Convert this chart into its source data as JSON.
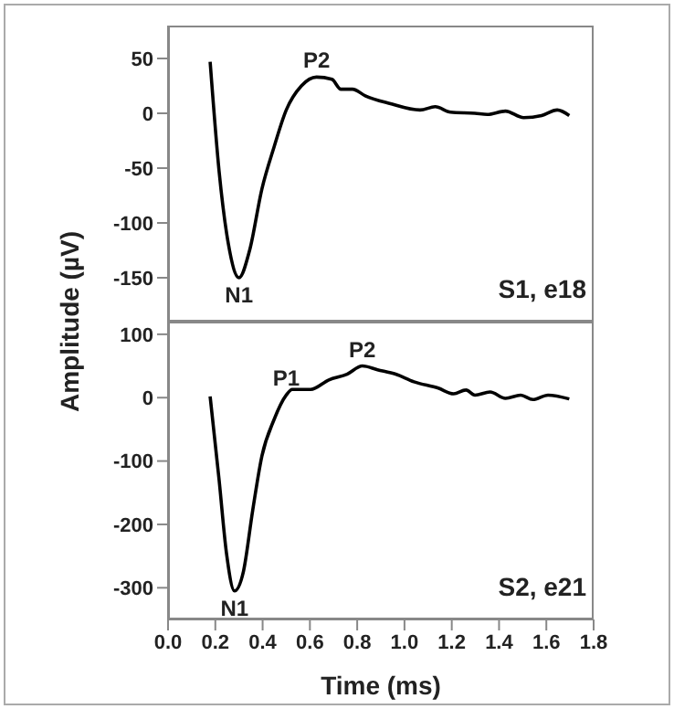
{
  "chart_data": [
    {
      "type": "line",
      "ylabel": "Amplitude (µV)",
      "xlim": [
        0,
        1.8
      ],
      "xticks": [
        0,
        0.2,
        0.4,
        0.6,
        0.8,
        1,
        1.2,
        1.4,
        1.6,
        1.8
      ],
      "ylim": [
        -190,
        80
      ],
      "yticks": [
        -150,
        -100,
        -50,
        0,
        50
      ],
      "tick_labels": "y",
      "marker": "none",
      "line_style": "solid",
      "series": [
        {
          "color": "#000000",
          "x": [
            0.178,
            0.216,
            0.255,
            0.3,
            0.345,
            0.397,
            0.448,
            0.5,
            0.564,
            0.628,
            0.693,
            0.731,
            0.78,
            0.834,
            0.937,
            1.066,
            1.13,
            1.195,
            1.298,
            1.35,
            1.427,
            1.504,
            1.58,
            1.646,
            1.697
          ],
          "values": [
            47,
            -53,
            -119,
            -150,
            -125,
            -69,
            -31,
            3,
            25,
            33,
            31,
            22,
            22,
            16,
            9,
            3,
            6,
            1,
            0,
            -1,
            2,
            -4,
            -2,
            3,
            -2
          ]
        }
      ],
      "annotations": [
        {
          "text": "N1",
          "x": 0.3,
          "y": -150
        },
        {
          "text": "P2",
          "x": 0.628,
          "y": 33
        },
        "S1, e18"
      ]
    },
    {
      "type": "line",
      "xlabel": "Time (ms)",
      "xlim": [
        0,
        1.8
      ],
      "xticks": [
        {
          "value": 0,
          "label": "0.0"
        },
        0.2,
        0.4,
        0.6,
        0.8,
        {
          "value": 1,
          "label": "1.0"
        },
        1.2,
        1.4,
        1.6,
        1.8
      ],
      "ylim": [
        -350,
        120
      ],
      "yticks": [
        -300,
        -200,
        -100,
        0,
        100
      ],
      "marker": "none",
      "line_style": "solid",
      "series": [
        {
          "color": "#000000",
          "x": [
            0.178,
            0.216,
            0.247,
            0.281,
            0.319,
            0.358,
            0.397,
            0.448,
            0.5,
            0.525,
            0.603,
            0.68,
            0.757,
            0.822,
            0.886,
            0.963,
            1.04,
            1.143,
            1.208,
            1.26,
            1.298,
            1.362,
            1.427,
            1.491,
            1.543,
            1.607,
            1.697
          ],
          "values": [
            2,
            -130,
            -245,
            -305,
            -274,
            -178,
            -92,
            -35,
            4,
            13,
            13,
            28,
            37,
            50,
            44,
            37,
            25,
            15,
            6,
            12,
            4,
            9,
            -1,
            4,
            -3,
            4,
            -2
          ]
        }
      ],
      "annotations": [
        {
          "text": "N1",
          "x": 0.281,
          "y": -305
        },
        {
          "text": "P1",
          "x": 0.5,
          "y": 4
        },
        {
          "text": "P2",
          "x": 0.822,
          "y": 50
        },
        "S2, e21"
      ]
    }
  ]
}
